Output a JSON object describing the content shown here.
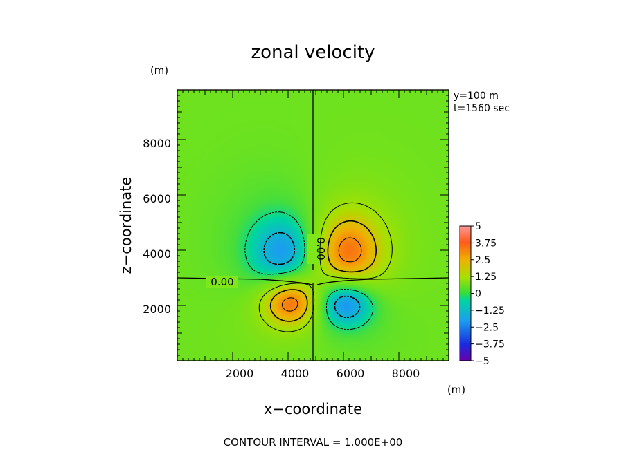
{
  "chart_data": {
    "type": "heatmap",
    "title": "zonal velocity",
    "xlabel": "x−coordinate",
    "ylabel": "z−coordinate",
    "x_unit": "(m)",
    "y_unit": "(m)",
    "xlim": [
      0,
      9800
    ],
    "ylim": [
      0,
      9800
    ],
    "x_ticks": [
      "2000",
      "4000",
      "6000",
      "8000"
    ],
    "y_ticks": [
      "2000",
      "4000",
      "6000",
      "8000"
    ],
    "annotations": [
      "y=100 m",
      "t=1560 sec"
    ],
    "contour_labels": [
      "0.00",
      "0.00"
    ],
    "footer": "CONTOUR INTERVAL = 1.000E+00",
    "colorbar": {
      "min": -5,
      "max": 5,
      "ticks": [
        "5",
        "3.75",
        "2.5",
        "1.25",
        "0",
        "−1.25",
        "−2.5",
        "−3.75",
        "−5"
      ]
    },
    "features": [
      {
        "name": "upper-right positive lobe",
        "x": 6000,
        "z": 3800,
        "value": 3.0
      },
      {
        "name": "upper-left negative lobe",
        "x": 3800,
        "z": 3800,
        "value": -2.2
      },
      {
        "name": "lower-left positive lobe",
        "x": 4000,
        "z": 2100,
        "value": 3.5
      },
      {
        "name": "lower-right negative lobe",
        "x": 6000,
        "z": 2100,
        "value": -3.2
      }
    ],
    "grid": false
  }
}
